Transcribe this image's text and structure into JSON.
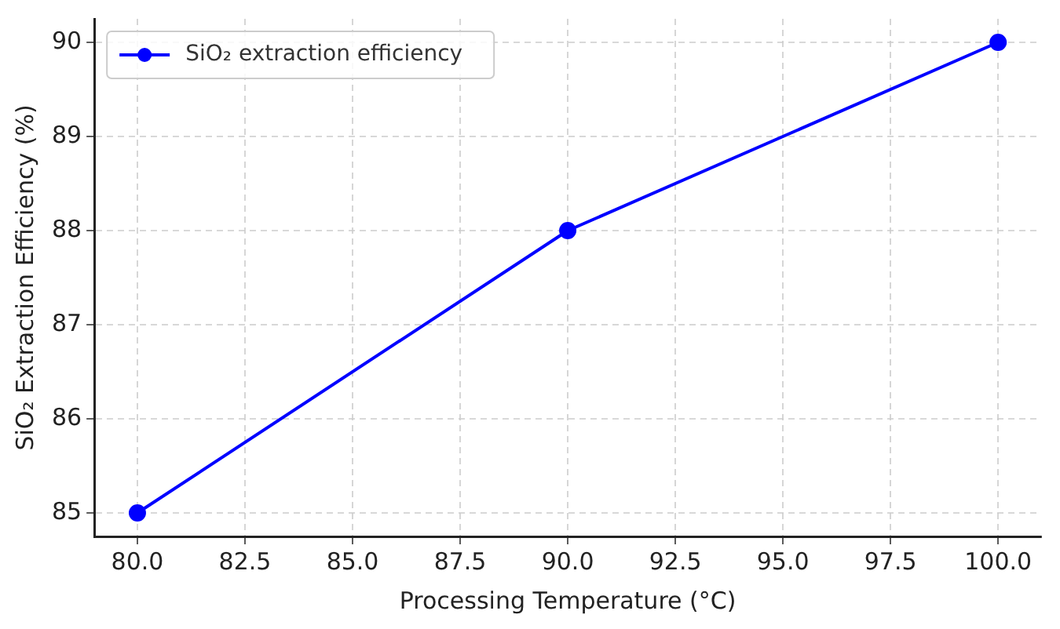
{
  "chart_data": {
    "type": "line",
    "xlabel": "Processing Temperature (°C)",
    "ylabel": "SiO₂ Extraction Efficiency (%)",
    "x": [
      80,
      90,
      100
    ],
    "series": [
      {
        "name": "SiO₂ extraction efficiency",
        "color": "#0000ff",
        "values": [
          85,
          88,
          90
        ]
      }
    ],
    "xlim": [
      79,
      101
    ],
    "xticks": [
      {
        "value": 80,
        "label": "80.0"
      },
      {
        "value": 82.5,
        "label": "82.5"
      },
      {
        "value": 85,
        "label": "85.0"
      },
      {
        "value": 87.5,
        "label": "87.5"
      },
      {
        "value": 90,
        "label": "90.0"
      },
      {
        "value": 92.5,
        "label": "92.5"
      },
      {
        "value": 95,
        "label": "95.0"
      },
      {
        "value": 97.5,
        "label": "97.5"
      },
      {
        "value": 100,
        "label": "100.0"
      }
    ],
    "ylim": [
      84.75,
      90.25
    ],
    "yticks": [
      85,
      86,
      87,
      88,
      89,
      90
    ],
    "grid": true,
    "legend": "top left",
    "marker": "circle",
    "line_style": "solid"
  }
}
